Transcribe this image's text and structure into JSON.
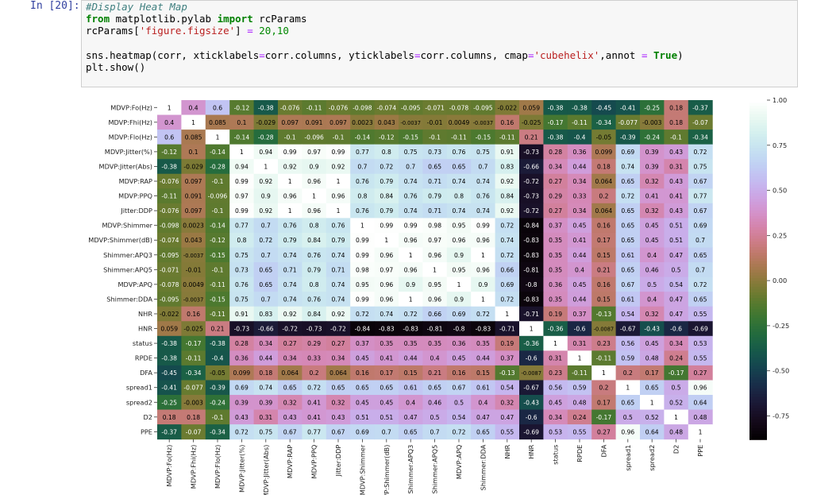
{
  "cell": {
    "prompt": "In [20]:",
    "code": {
      "line1_comment": "#Display Heat Map",
      "line2": {
        "kw_from": "from",
        "module": " matplotlib.pylab ",
        "kw_import": "import",
        "name": " rcParams"
      },
      "line3": {
        "pre": "rcParams[",
        "str": "'figure.figsize'",
        "mid": "] ",
        "op": "=",
        "num": " 20,10"
      },
      "line4": {
        "pre": "sns.heatmap(corr, xticklabels",
        "eq1": "=",
        "a": "corr.columns, yticklabels",
        "eq2": "=",
        "b": "corr.columns, cmap",
        "eq3": "=",
        "str": "'cubehelix'",
        "c": ",annot ",
        "eq4": "=",
        "kw": " True",
        "end": ")"
      },
      "line5": "plt.show()"
    }
  },
  "chart_data": {
    "type": "heatmap",
    "colormap": "cubehelix",
    "annot": true,
    "labels": [
      "MDVP:Fo(Hz)",
      "MDVP:Fhi(Hz)",
      "MDVP:Flo(Hz)",
      "MDVP:Jitter(%)",
      "MDVP:Jitter(Abs)",
      "MDVP:RAP",
      "MDVP:PPQ",
      "Jitter:DDP",
      "MDVP:Shimmer",
      "MDVP:Shimmer(dB)",
      "Shimmer:APQ3",
      "Shimmer:APQ5",
      "MDVP:APQ",
      "Shimmer:DDA",
      "NHR",
      "HNR",
      "status",
      "RPDE",
      "DFA",
      "spread1",
      "spread2",
      "D2",
      "PPE"
    ],
    "annotations": [
      [
        "1",
        "0.4",
        "0.6",
        "-0.12",
        "-0.38",
        "-0.076",
        "-0.11",
        "-0.076",
        "-0.098",
        "-0.074",
        "-0.095",
        "-0.071",
        "-0.078",
        "-0.095",
        "-0.022",
        "0.059",
        "-0.38",
        "-0.38",
        "-0.45",
        "-0.41",
        "-0.25",
        "0.18",
        "-0.37"
      ],
      [
        "0.4",
        "1",
        "0.085",
        "0.1",
        "-0.029",
        "0.097",
        "0.091",
        "0.097",
        "0.0023",
        "0.043",
        "-0.0037",
        "-0.01",
        "0.0049",
        "-0.0037",
        "0.16",
        "-0.025",
        "-0.17",
        "-0.11",
        "-0.34",
        "-0.077",
        "-0.003",
        "0.18",
        "-0.07"
      ],
      [
        "0.6",
        "0.085",
        "1",
        "-0.14",
        "-0.28",
        "-0.1",
        "-0.096",
        "-0.1",
        "-0.14",
        "-0.12",
        "-0.15",
        "-0.1",
        "-0.11",
        "-0.15",
        "-0.11",
        "0.21",
        "-0.38",
        "-0.4",
        "-0.05",
        "-0.39",
        "-0.24",
        "-0.1",
        "-0.34"
      ],
      [
        "-0.12",
        "0.1",
        "-0.14",
        "1",
        "0.94",
        "0.99",
        "0.97",
        "0.99",
        "0.77",
        "0.8",
        "0.75",
        "0.73",
        "0.76",
        "0.75",
        "0.91",
        "-0.73",
        "0.28",
        "0.36",
        "0.099",
        "0.69",
        "0.39",
        "0.43",
        "0.72"
      ],
      [
        "-0.38",
        "-0.029",
        "-0.28",
        "0.94",
        "1",
        "0.92",
        "0.9",
        "0.92",
        "0.7",
        "0.72",
        "0.7",
        "0.65",
        "0.65",
        "0.7",
        "0.83",
        "-0.66",
        "0.34",
        "0.44",
        "0.18",
        "0.74",
        "0.39",
        "0.31",
        "0.75"
      ],
      [
        "-0.076",
        "0.097",
        "-0.1",
        "0.99",
        "0.92",
        "1",
        "0.96",
        "1",
        "0.76",
        "0.79",
        "0.74",
        "0.71",
        "0.74",
        "0.74",
        "0.92",
        "-0.72",
        "0.27",
        "0.34",
        "0.064",
        "0.65",
        "0.32",
        "0.43",
        "0.67"
      ],
      [
        "-0.11",
        "0.091",
        "-0.096",
        "0.97",
        "0.9",
        "0.96",
        "1",
        "0.96",
        "0.8",
        "0.84",
        "0.76",
        "0.79",
        "0.8",
        "0.76",
        "0.84",
        "-0.73",
        "0.29",
        "0.33",
        "0.2",
        "0.72",
        "0.41",
        "0.41",
        "0.77"
      ],
      [
        "-0.076",
        "0.097",
        "-0.1",
        "0.99",
        "0.92",
        "1",
        "0.96",
        "1",
        "0.76",
        "0.79",
        "0.74",
        "0.71",
        "0.74",
        "0.74",
        "0.92",
        "-0.72",
        "0.27",
        "0.34",
        "0.064",
        "0.65",
        "0.32",
        "0.43",
        "0.67"
      ],
      [
        "-0.098",
        "0.0023",
        "-0.14",
        "0.77",
        "0.7",
        "0.76",
        "0.8",
        "0.76",
        "1",
        "0.99",
        "0.99",
        "0.98",
        "0.95",
        "0.99",
        "0.72",
        "-0.84",
        "0.37",
        "0.45",
        "0.16",
        "0.65",
        "0.45",
        "0.51",
        "0.69"
      ],
      [
        "-0.074",
        "0.043",
        "-0.12",
        "0.8",
        "0.72",
        "0.79",
        "0.84",
        "0.79",
        "0.99",
        "1",
        "0.96",
        "0.97",
        "0.96",
        "0.96",
        "0.74",
        "-0.83",
        "0.35",
        "0.41",
        "0.17",
        "0.65",
        "0.45",
        "0.51",
        "0.7"
      ],
      [
        "-0.095",
        "-0.0037",
        "-0.15",
        "0.75",
        "0.7",
        "0.74",
        "0.76",
        "0.74",
        "0.99",
        "0.96",
        "1",
        "0.96",
        "0.9",
        "1",
        "0.72",
        "-0.83",
        "0.35",
        "0.44",
        "0.15",
        "0.61",
        "0.4",
        "0.47",
        "0.65"
      ],
      [
        "-0.071",
        "-0.01",
        "-0.1",
        "0.73",
        "0.65",
        "0.71",
        "0.79",
        "0.71",
        "0.98",
        "0.97",
        "0.96",
        "1",
        "0.95",
        "0.96",
        "0.66",
        "-0.81",
        "0.35",
        "0.4",
        "0.21",
        "0.65",
        "0.46",
        "0.5",
        "0.7"
      ],
      [
        "-0.078",
        "0.0049",
        "-0.11",
        "0.76",
        "0.65",
        "0.74",
        "0.8",
        "0.74",
        "0.95",
        "0.96",
        "0.9",
        "0.95",
        "1",
        "0.9",
        "0.69",
        "-0.8",
        "0.36",
        "0.45",
        "0.16",
        "0.67",
        "0.5",
        "0.54",
        "0.72"
      ],
      [
        "-0.095",
        "-0.0037",
        "-0.15",
        "0.75",
        "0.7",
        "0.74",
        "0.76",
        "0.74",
        "0.99",
        "0.96",
        "1",
        "0.96",
        "0.9",
        "1",
        "0.72",
        "-0.83",
        "0.35",
        "0.44",
        "0.15",
        "0.61",
        "0.4",
        "0.47",
        "0.65"
      ],
      [
        "-0.022",
        "0.16",
        "-0.11",
        "0.91",
        "0.83",
        "0.92",
        "0.84",
        "0.92",
        "0.72",
        "0.74",
        "0.72",
        "0.66",
        "0.69",
        "0.72",
        "1",
        "-0.71",
        "0.19",
        "0.37",
        "-0.13",
        "0.54",
        "0.32",
        "0.47",
        "0.55"
      ],
      [
        "0.059",
        "-0.025",
        "0.21",
        "-0.73",
        "-0.66",
        "-0.72",
        "-0.73",
        "-0.72",
        "-0.84",
        "-0.83",
        "-0.83",
        "-0.81",
        "-0.8",
        "-0.83",
        "-0.71",
        "1",
        "-0.36",
        "-0.6",
        "-0.0087",
        "-0.67",
        "-0.43",
        "-0.6",
        "-0.69"
      ],
      [
        "-0.38",
        "-0.17",
        "-0.38",
        "0.28",
        "0.34",
        "0.27",
        "0.29",
        "0.27",
        "0.37",
        "0.35",
        "0.35",
        "0.35",
        "0.36",
        "0.35",
        "0.19",
        "-0.36",
        "1",
        "0.31",
        "0.23",
        "0.56",
        "0.45",
        "0.34",
        "0.53"
      ],
      [
        "-0.38",
        "-0.11",
        "-0.4",
        "0.36",
        "0.44",
        "0.34",
        "0.33",
        "0.34",
        "0.45",
        "0.41",
        "0.44",
        "0.4",
        "0.45",
        "0.44",
        "0.37",
        "-0.6",
        "0.31",
        "1",
        "-0.11",
        "0.59",
        "0.48",
        "0.24",
        "0.55"
      ],
      [
        "-0.45",
        "-0.34",
        "-0.05",
        "0.099",
        "0.18",
        "0.064",
        "0.2",
        "0.064",
        "0.16",
        "0.17",
        "0.15",
        "0.21",
        "0.16",
        "0.15",
        "-0.13",
        "-0.0087",
        "0.23",
        "-0.11",
        "1",
        "0.2",
        "0.17",
        "-0.17",
        "0.27"
      ],
      [
        "-0.41",
        "-0.077",
        "-0.39",
        "0.69",
        "0.74",
        "0.65",
        "0.72",
        "0.65",
        "0.65",
        "0.65",
        "0.61",
        "0.65",
        "0.67",
        "0.61",
        "0.54",
        "-0.67",
        "0.56",
        "0.59",
        "0.2",
        "1",
        "0.65",
        "0.5",
        "0.96"
      ],
      [
        "-0.25",
        "-0.003",
        "-0.24",
        "0.39",
        "0.39",
        "0.32",
        "0.41",
        "0.32",
        "0.45",
        "0.45",
        "0.4",
        "0.46",
        "0.5",
        "0.4",
        "0.32",
        "-0.43",
        "0.45",
        "0.48",
        "0.17",
        "0.65",
        "1",
        "0.52",
        "0.64"
      ],
      [
        "0.18",
        "0.18",
        "-0.1",
        "0.43",
        "0.31",
        "0.43",
        "0.41",
        "0.43",
        "0.51",
        "0.51",
        "0.47",
        "0.5",
        "0.54",
        "0.47",
        "0.47",
        "-0.6",
        "0.34",
        "0.24",
        "-0.17",
        "0.5",
        "0.52",
        "1",
        "0.48"
      ],
      [
        "-0.37",
        "-0.07",
        "-0.34",
        "0.72",
        "0.75",
        "0.67",
        "0.77",
        "0.67",
        "0.69",
        "0.7",
        "0.65",
        "0.7",
        "0.72",
        "0.65",
        "0.55",
        "-0.69",
        "0.53",
        "0.55",
        "0.27",
        "0.96",
        "0.64",
        "0.48",
        "1"
      ]
    ],
    "colorbar": {
      "min": -0.88,
      "max": 1.0,
      "ticks": [
        "1.00",
        "0.75",
        "0.50",
        "0.25",
        "0.00",
        "-0.25",
        "-0.50",
        "-0.75"
      ],
      "tick_values": [
        1.0,
        0.75,
        0.5,
        0.25,
        0.0,
        -0.25,
        -0.5,
        -0.75
      ]
    }
  }
}
